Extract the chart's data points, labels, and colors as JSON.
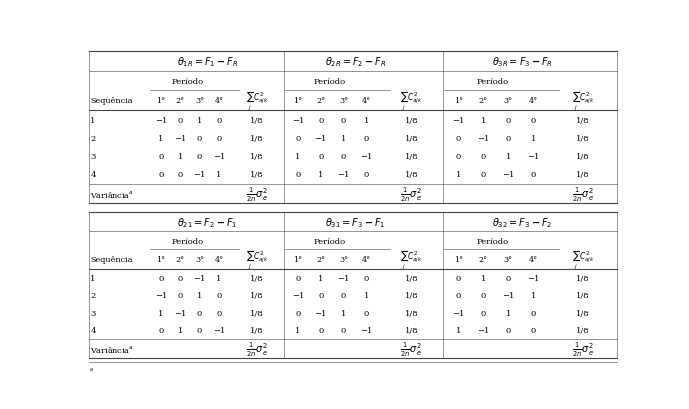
{
  "bg_color": "#ffffff",
  "top_headers": [
    "$\\theta_{1R} = \\boldsymbol{F_1 - F_R}$",
    "$\\theta_{2R} = \\boldsymbol{F_2 - F_R}$",
    "$\\theta_{3R} = \\boldsymbol{F_3 - F_R}$"
  ],
  "bottom_headers": [
    "$\\theta_{21} = \\boldsymbol{F_2 - F_1}$",
    "$\\theta_{31} = \\boldsymbol{F_3 - F_1}$",
    "$\\theta_{32} = \\boldsymbol{F_3 - F_2}$"
  ],
  "top_data": [
    [
      -1,
      0,
      1,
      0,
      -1,
      0,
      0,
      1,
      -1,
      1,
      0,
      0
    ],
    [
      1,
      -1,
      0,
      0,
      0,
      -1,
      1,
      0,
      0,
      -1,
      0,
      1
    ],
    [
      0,
      1,
      0,
      -1,
      1,
      0,
      0,
      -1,
      0,
      0,
      1,
      -1
    ],
    [
      0,
      0,
      -1,
      1,
      0,
      1,
      -1,
      0,
      1,
      0,
      -1,
      0
    ]
  ],
  "bottom_data": [
    [
      0,
      0,
      -1,
      1,
      0,
      1,
      -1,
      0,
      0,
      1,
      0,
      -1
    ],
    [
      -1,
      0,
      1,
      0,
      -1,
      0,
      0,
      1,
      0,
      0,
      -1,
      1
    ],
    [
      1,
      -1,
      0,
      0,
      0,
      -1,
      1,
      0,
      -1,
      0,
      1,
      0
    ],
    [
      0,
      1,
      0,
      -1,
      1,
      0,
      0,
      -1,
      1,
      -1,
      0,
      0
    ]
  ],
  "col_period_labels": [
    "1°",
    "2°",
    "3°",
    "4°"
  ],
  "seq_labels": [
    "1",
    "2",
    "3",
    "4"
  ],
  "periodo_label": "Período",
  "seq_label": "Sequência",
  "var_label": "Variância",
  "line_color": "#444444",
  "lw_thick": 0.8,
  "lw_thin": 0.4
}
